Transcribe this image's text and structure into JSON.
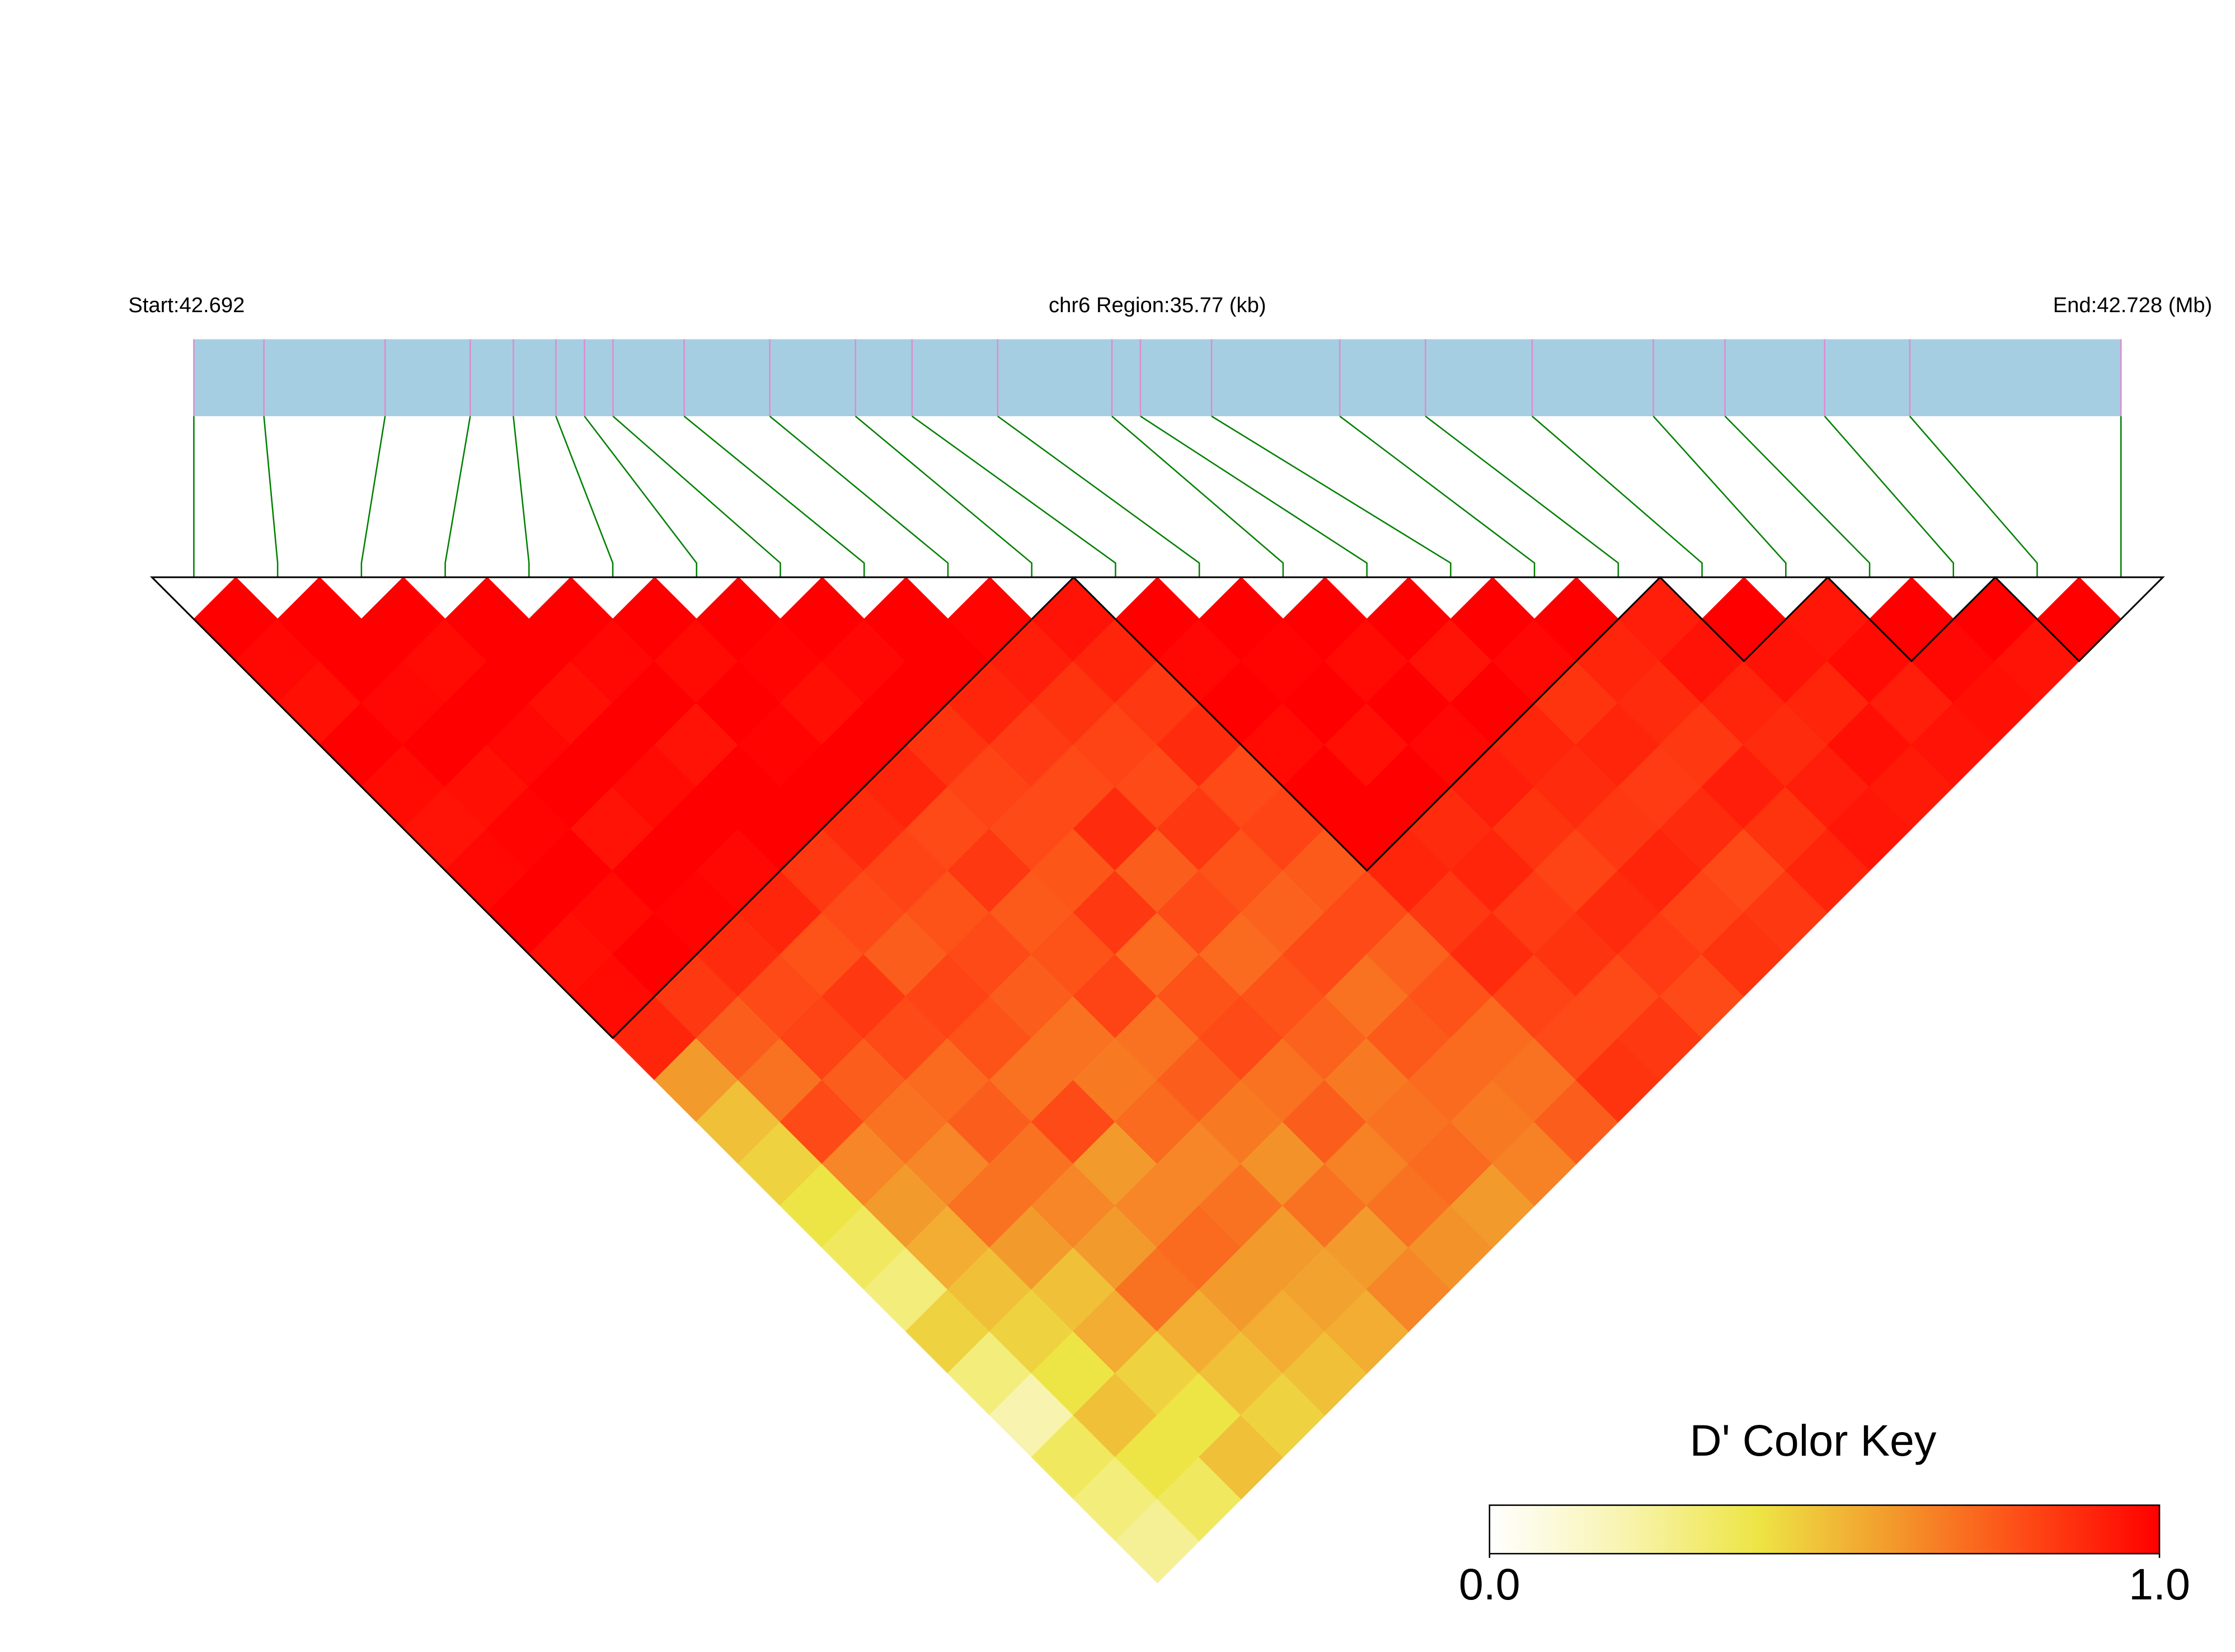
{
  "chart_data": {
    "type": "ld-heatmap",
    "title": "chr6 Region:35.77 (kb)",
    "start_label": "Start:42.692",
    "end_label": "End:42.728 (Mb)",
    "xlim": [
      42.692,
      42.72777
    ],
    "snp_positions": [
      42.692,
      42.6933,
      42.69555,
      42.69713,
      42.69793,
      42.69872,
      42.69925,
      42.69978,
      42.7011,
      42.70269,
      42.70428,
      42.70533,
      42.70692,
      42.70904,
      42.70957,
      42.71089,
      42.71327,
      42.71486,
      42.71684,
      42.71909,
      42.72042,
      42.72227,
      42.72385,
      42.72777
    ],
    "dprime": [
      [
        1,
        0.98,
        0.96,
        1,
        0.97,
        0.95,
        0.98,
        1,
        0.96,
        0.97,
        0.9,
        0.6,
        0.5,
        0.45,
        0.4,
        0.35,
        0.3,
        0.45,
        0.3,
        0.2,
        0.35,
        0.3,
        0.25
      ],
      [
        1,
        1,
        0.98,
        1,
        0.96,
        0.99,
        1,
        0.97,
        1,
        0.85,
        0.75,
        0.7,
        0.8,
        0.65,
        0.6,
        0.55,
        0.5,
        0.45,
        0.4,
        0.5,
        0.4,
        0.35
      ],
      [
        1,
        0.97,
        1,
        0.98,
        1,
        0.95,
        1,
        0.99,
        0.88,
        0.8,
        0.82,
        0.75,
        0.7,
        0.65,
        0.7,
        0.6,
        0.5,
        0.55,
        0.45,
        0.4,
        0.5
      ],
      [
        1,
        1,
        0.96,
        1,
        0.97,
        1,
        0.98,
        0.9,
        0.78,
        0.85,
        0.8,
        0.72,
        0.75,
        0.7,
        0.65,
        0.6,
        0.7,
        0.55,
        0.5,
        0.45
      ],
      [
        1,
        0.98,
        1,
        0.95,
        1,
        1,
        0.85,
        0.8,
        0.75,
        0.82,
        0.78,
        0.7,
        0.8,
        0.6,
        0.65,
        0.72,
        0.6,
        0.55,
        0.5
      ],
      [
        1,
        0.97,
        1,
        0.99,
        1,
        0.88,
        0.82,
        0.78,
        0.8,
        0.75,
        0.7,
        0.68,
        0.72,
        0.65,
        0.7,
        0.6,
        0.58,
        0.55
      ],
      [
        1,
        0.99,
        0.96,
        1,
        0.9,
        0.8,
        0.85,
        0.76,
        0.78,
        0.82,
        0.7,
        0.75,
        0.68,
        0.62,
        0.7,
        0.6,
        0.65
      ],
      [
        1,
        0.98,
        1,
        0.86,
        0.82,
        0.8,
        0.77,
        0.85,
        0.72,
        0.78,
        0.8,
        0.7,
        0.75,
        0.66,
        0.7,
        0.62
      ],
      [
        1,
        1,
        0.9,
        0.84,
        0.8,
        0.88,
        0.75,
        0.8,
        0.72,
        0.78,
        0.74,
        0.68,
        0.7,
        0.72,
        0.6
      ],
      [
        0.99,
        0.92,
        0.86,
        0.82,
        0.8,
        0.85,
        0.78,
        0.74,
        0.8,
        0.7,
        0.76,
        0.72,
        0.68,
        0.66
      ],
      [
        0.95,
        0.9,
        0.85,
        0.88,
        0.8,
        0.82,
        0.76,
        0.8,
        0.74,
        0.78,
        0.72,
        0.7,
        0.75
      ],
      [
        1,
        0.98,
        1,
        0.97,
        1,
        1,
        0.9,
        0.85,
        0.88,
        0.82,
        0.8,
        0.86
      ],
      [
        1,
        0.99,
        1,
        0.96,
        1,
        0.88,
        0.9,
        0.84,
        0.86,
        0.8,
        0.85
      ],
      [
        1,
        0.97,
        1,
        0.98,
        0.92,
        0.86,
        0.82,
        0.88,
        0.84,
        0.8
      ],
      [
        1,
        0.95,
        1,
        0.9,
        0.88,
        0.85,
        0.9,
        0.82,
        0.86
      ],
      [
        1,
        0.98,
        0.86,
        0.9,
        0.84,
        0.88,
        0.8,
        0.85
      ],
      [
        1,
        0.9,
        0.88,
        0.85,
        0.92,
        0.86,
        0.9
      ],
      [
        0.92,
        0.95,
        0.9,
        0.88,
        0.92,
        0.94
      ],
      [
        1,
        0.95,
        0.9,
        0.96,
        0.93
      ],
      [
        0.94,
        0.97,
        0.92,
        0.95
      ],
      [
        1,
        0.98,
        0.96
      ],
      [
        1,
        0.95
      ],
      [
        1
      ]
    ],
    "blocks": [
      [
        0,
        10
      ],
      [
        11,
        17
      ],
      [
        18,
        19
      ],
      [
        20,
        21
      ],
      [
        22,
        23
      ]
    ],
    "bar_color": "#a6cee3",
    "snp_line_color": "#e08ad0",
    "connector_color": "#008000",
    "block_outline_color": "#000000",
    "color_key": {
      "title": "D' Color Key",
      "lim": [
        0,
        1
      ],
      "ticks": [
        {
          "value": 0,
          "label": "0.0"
        },
        {
          "value": 1,
          "label": "1.0"
        }
      ],
      "colors": [
        "#ffffff",
        "#f8f4b0",
        "#ede545",
        "#f39a2c",
        "#fe4a16",
        "#ff0000"
      ]
    }
  }
}
